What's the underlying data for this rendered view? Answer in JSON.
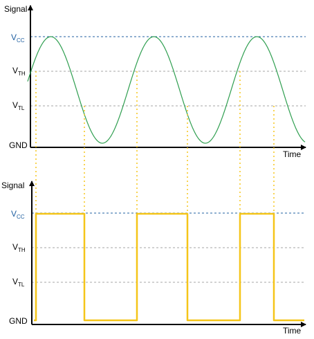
{
  "top_plot": {
    "y_axis_label": "Signal",
    "x_axis_label": "Time",
    "levels": {
      "vcc": {
        "main": "V",
        "sub": "CC"
      },
      "vth": {
        "main": "V",
        "sub": "TH"
      },
      "vtl": {
        "main": "V",
        "sub": "TL"
      },
      "gnd": "GND"
    },
    "curve": {
      "shape": "sine",
      "color": "#2e9e4f"
    }
  },
  "bottom_plot": {
    "y_axis_label": "Signal",
    "x_axis_label": "Time",
    "levels": {
      "vcc": {
        "main": "V",
        "sub": "CC"
      },
      "vth": {
        "main": "V",
        "sub": "TH"
      },
      "vtl": {
        "main": "V",
        "sub": "TL"
      },
      "gnd": "GND"
    },
    "curve": {
      "shape": "square",
      "color": "#f5c518"
    }
  },
  "colors": {
    "vcc_line": "#1f5fa0",
    "threshold_lines": "#a6a6a6",
    "projection_lines": "#f5c518",
    "axes": "#000000"
  }
}
